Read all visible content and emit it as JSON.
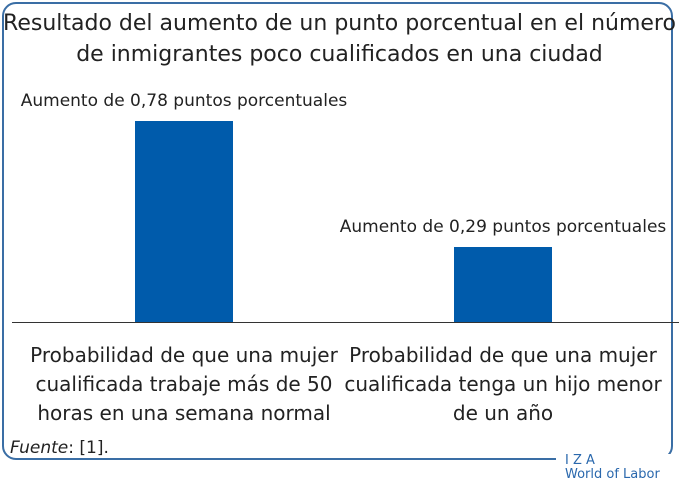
{
  "chart_data": {
    "type": "bar",
    "title": "Resultado del aumento de un punto porcentual en el número de inmigrantes poco cualificados en una ciudad",
    "categories": [
      "Probabilidad de que una mujer cualificada trabaje más de 50 horas en una semana normal",
      "Probabilidad de que una mujer cualificada tenga un hijo menor de un año"
    ],
    "values": [
      0.78,
      0.29
    ],
    "value_labels": [
      "Aumento de 0,78 puntos porcentuales",
      "Aumento de 0,29 puntos porcentuales"
    ],
    "color": "#005bab",
    "source": {
      "label": "Fuente",
      "text": ": [1]."
    },
    "logo": [
      "I Z A",
      "World of Labor"
    ]
  }
}
